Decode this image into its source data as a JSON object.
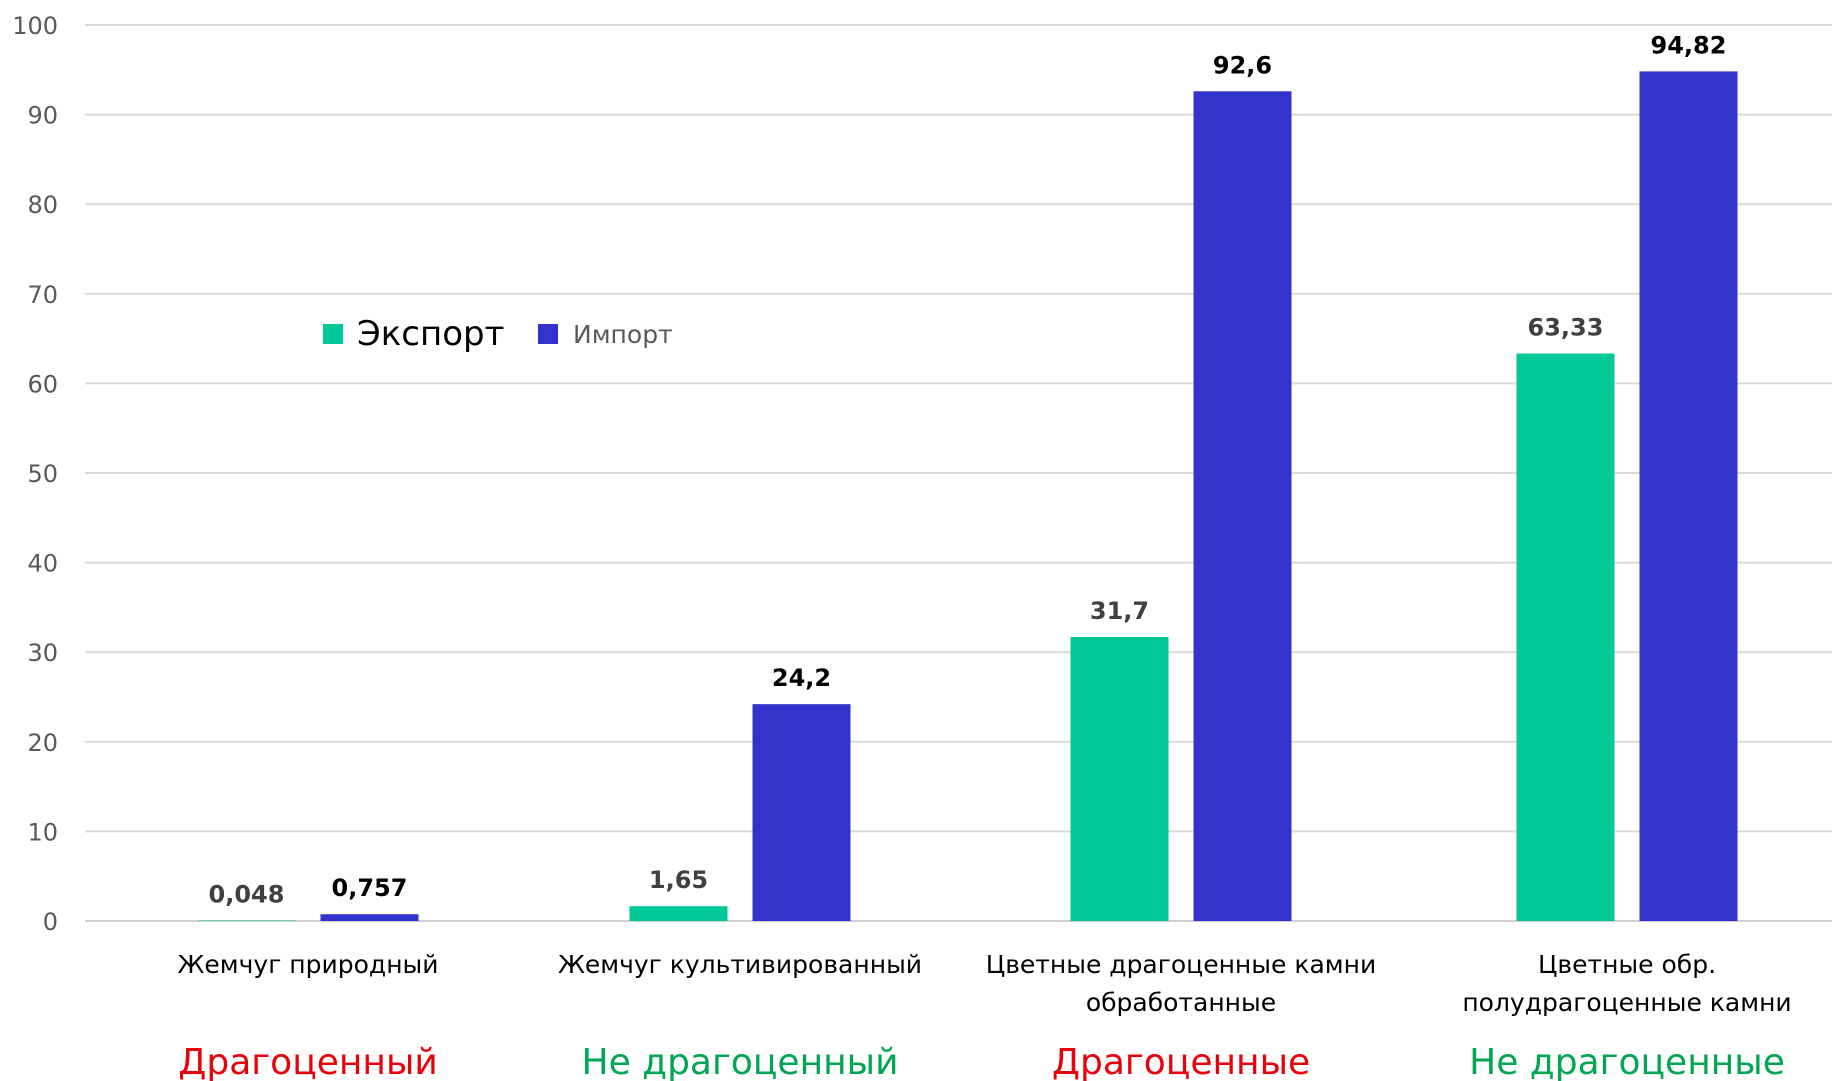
{
  "chart_data": {
    "type": "bar",
    "categories": [
      [
        "Жемчуг природный"
      ],
      [
        "Жемчуг культивированный"
      ],
      [
        "Цветные драгоценные камни",
        "обработанные"
      ],
      [
        "Цветные обр.",
        "полудрагоценные камни"
      ]
    ],
    "series": [
      {
        "name": "Экспорт",
        "color": "#00C896",
        "values": [
          0.048,
          1.65,
          31.7,
          63.33
        ],
        "labels": [
          "0,048",
          "1,65",
          "31,7",
          "63,33"
        ],
        "label_color": "#404040"
      },
      {
        "name": "Импорт",
        "color": "#3333CC",
        "values": [
          0.757,
          24.2,
          92.6,
          94.82
        ],
        "labels": [
          "0,757",
          "24,2",
          "92,6",
          "94,82"
        ],
        "label_color": "#000000"
      }
    ],
    "ylim": [
      0,
      100
    ],
    "yticks": [
      0,
      10,
      20,
      30,
      40,
      50,
      60,
      70,
      80,
      90,
      100
    ],
    "grid": true,
    "legend_position": "upper-left inside plot",
    "group_labels": [
      {
        "text": "Драгоценный",
        "color": "#E8000B"
      },
      {
        "text": "Не драгоценный",
        "color": "#00A651"
      },
      {
        "text": "Драгоценные",
        "color": "#E8000B"
      },
      {
        "text": "Не драгоценные",
        "color": "#00A651"
      }
    ],
    "title": "",
    "xlabel": "",
    "ylabel": ""
  }
}
